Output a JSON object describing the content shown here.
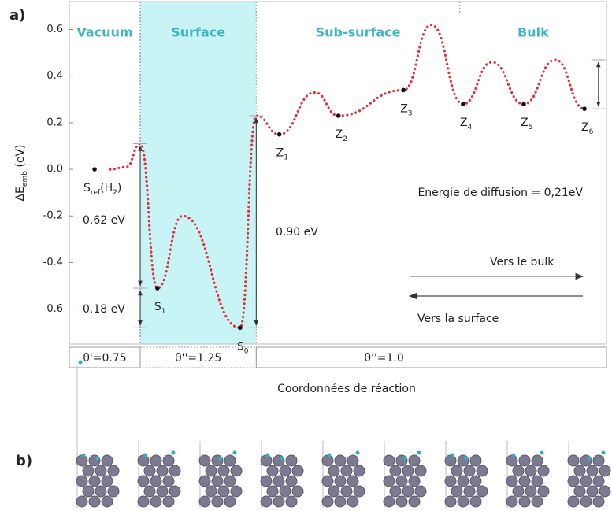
{
  "panel_a": "a)",
  "panel_b": "b)",
  "chart_data": {
    "type": "line",
    "ylabel": [
      "ΔE",
      "emb",
      " (eV)"
    ],
    "xlabel": "Coordonnées de réaction",
    "xlim": [
      0,
      100
    ],
    "ylim": [
      -0.75,
      0.72
    ],
    "yticks": [
      0.6,
      0.4,
      0.2,
      {
        "value": 0,
        "label": "0.0"
      },
      -0.2,
      -0.4,
      -0.6
    ],
    "series": [
      {
        "color": "#e0323c",
        "x": [
          7.6,
          10.6,
          13.2,
          16.4,
          21.1,
          31.8,
          34.8,
          39.1,
          45.7,
          50.1,
          62.2,
          67.4,
          73.3,
          78.7,
          84.6,
          90.5,
          95.9
        ],
        "values": [
          0.0,
          0.01,
          0.11,
          -0.51,
          -0.2,
          -0.68,
          0.23,
          0.15,
          0.33,
          0.23,
          0.34,
          0.62,
          0.28,
          0.46,
          0.28,
          0.47,
          0.26
        ]
      }
    ],
    "states": [
      {
        "label": [
          "S",
          "ref",
          "(H",
          "2",
          ")"
        ],
        "x": 4.7,
        "y": 0.0
      },
      {
        "label": [
          "S",
          "1"
        ],
        "x": 16.4,
        "y": -0.51
      },
      {
        "label": [
          "S",
          "0"
        ],
        "x": 31.8,
        "y": -0.68
      },
      {
        "label": [
          "Z",
          "1"
        ],
        "x": 39.1,
        "y": 0.15
      },
      {
        "label": [
          "Z",
          "2"
        ],
        "x": 50.1,
        "y": 0.23
      },
      {
        "label": [
          "Z",
          "3"
        ],
        "x": 62.2,
        "y": 0.34
      },
      {
        "label": [
          "Z",
          "4"
        ],
        "x": 73.3,
        "y": 0.28
      },
      {
        "label": [
          "Z",
          "5"
        ],
        "x": 84.6,
        "y": 0.28
      },
      {
        "label": [
          "Z",
          "6"
        ],
        "x": 95.9,
        "y": 0.26
      }
    ],
    "regions": [
      {
        "name": "Vacuum",
        "x": [
          0,
          13.2
        ]
      },
      {
        "name": "Surface",
        "x": [
          13.2,
          34.8
        ],
        "shaded": true,
        "color": "#c8f4f6"
      },
      {
        "name": "Sub-surface",
        "x": [
          34.8,
          72.7
        ]
      },
      {
        "name": "Bulk",
        "x": [
          72.7,
          100
        ]
      }
    ],
    "coverage": [
      {
        "label": "θ'=0.75",
        "x": [
          0,
          13.2
        ]
      },
      {
        "label": "θ''=1.25",
        "x": [
          13.2,
          34.8
        ]
      },
      {
        "label": "θ''=1.0",
        "x": [
          34.8,
          100
        ]
      }
    ],
    "energies": [
      {
        "label": "0.62 eV",
        "x": 13.2,
        "from": 0.11,
        "to": -0.51
      },
      {
        "label": "0.18 eV",
        "x": 13.2,
        "from": -0.51,
        "to": -0.68
      },
      {
        "label": "0.90 eV",
        "x": 34.8,
        "from": 0.23,
        "to": -0.68
      },
      {
        "label": "Energie de diffusion = 0,21eV",
        "x": 98.5,
        "from": 0.47,
        "to": 0.26
      }
    ],
    "directions": [
      "Vers le bulk",
      "Vers la surface"
    ]
  }
}
